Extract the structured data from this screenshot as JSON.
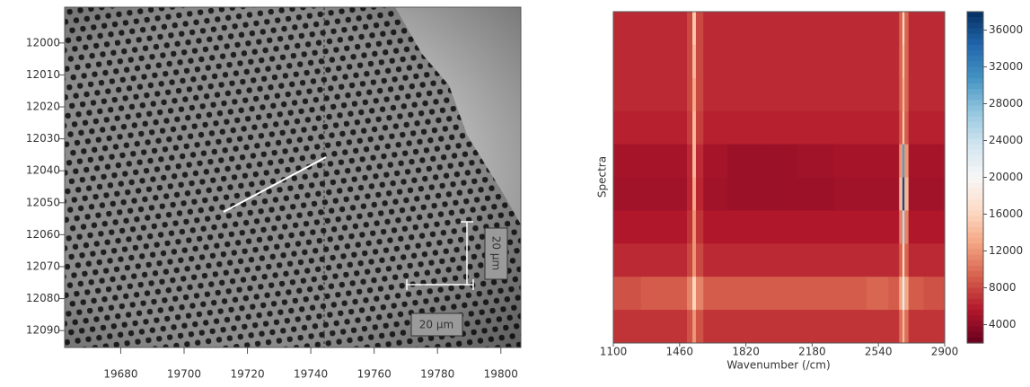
{
  "chart_data": [
    {
      "type": "image",
      "xlim": [
        19662.3,
        19806.3
      ],
      "ylim": [
        12095.3,
        11988.8
      ],
      "xticks": [
        19680,
        19700,
        19720,
        19740,
        19760,
        19780,
        19800
      ],
      "yticks": [
        12000,
        12010,
        12020,
        12030,
        12040,
        12050,
        12060,
        12070,
        12080,
        12090
      ],
      "annotations": [
        "20 µm",
        "20 µm"
      ]
    },
    {
      "type": "heatmap",
      "ylabel": "Spectra",
      "xlabel": "Wavenumber (/cm)",
      "xlim": [
        1100,
        2900
      ],
      "xticks": [
        1100,
        1460,
        1820,
        2180,
        2540,
        2900
      ],
      "clim": [
        2000,
        38000
      ],
      "cticks": [
        4000,
        8000,
        12000,
        16000,
        20000,
        24000,
        28000,
        32000,
        36000
      ],
      "colormap": [
        "#67001f",
        "#b2182b",
        "#d6604d",
        "#f4a582",
        "#fddbc7",
        "#f7f7f7",
        "#d1e5f0",
        "#92c5de",
        "#4393c3",
        "#2166ac",
        "#053061"
      ],
      "x": [
        1150,
        1350,
        1480,
        1520,
        1539,
        1558,
        1620,
        1820,
        2000,
        2200,
        2400,
        2550,
        2640,
        2665,
        2676,
        2687,
        2720,
        2850
      ],
      "values": [
        [
          6500,
          6500,
          6500,
          8000,
          15000,
          8000,
          6500,
          6500,
          6500,
          6500,
          6500,
          6500,
          6500,
          9500,
          16000,
          9500,
          6500,
          6500
        ],
        [
          6500,
          6500,
          6500,
          8000,
          14000,
          8000,
          6500,
          6500,
          6500,
          6500,
          6500,
          6500,
          6500,
          9500,
          15000,
          9500,
          6500,
          6500
        ],
        [
          6500,
          6500,
          6500,
          8000,
          13000,
          8000,
          6500,
          6500,
          6500,
          6500,
          6500,
          6500,
          6500,
          9500,
          14000,
          9500,
          6500,
          6500
        ],
        [
          6000,
          6000,
          6000,
          7500,
          14000,
          7500,
          6000,
          6000,
          6000,
          6000,
          6000,
          6000,
          6000,
          9000,
          15000,
          9000,
          6000,
          6000
        ],
        [
          5000,
          5000,
          5000,
          6500,
          14000,
          6500,
          5000,
          4500,
          4500,
          4800,
          5000,
          5000,
          5000,
          12000,
          30000,
          12000,
          5000,
          5000
        ],
        [
          4800,
          4800,
          4800,
          6300,
          13000,
          6300,
          4800,
          4500,
          4500,
          4600,
          4800,
          4800,
          4800,
          14000,
          36000,
          14000,
          4800,
          4800
        ],
        [
          5500,
          5500,
          5500,
          7000,
          12000,
          7000,
          5500,
          5500,
          5500,
          5500,
          5500,
          5500,
          5500,
          11000,
          25000,
          11000,
          5500,
          5500
        ],
        [
          6500,
          6500,
          6500,
          8000,
          12000,
          8000,
          6500,
          6500,
          6500,
          6500,
          6500,
          6500,
          6500,
          9500,
          16000,
          9500,
          6500,
          6500
        ],
        [
          8500,
          9000,
          9000,
          11000,
          16000,
          11000,
          9000,
          9000,
          9000,
          9000,
          9000,
          9500,
          9000,
          13000,
          22000,
          13000,
          9000,
          8500
        ],
        [
          7000,
          7000,
          7000,
          8500,
          12000,
          8500,
          7000,
          7000,
          7000,
          7000,
          7000,
          7000,
          7000,
          10000,
          14000,
          10000,
          7000,
          7000
        ]
      ]
    }
  ]
}
